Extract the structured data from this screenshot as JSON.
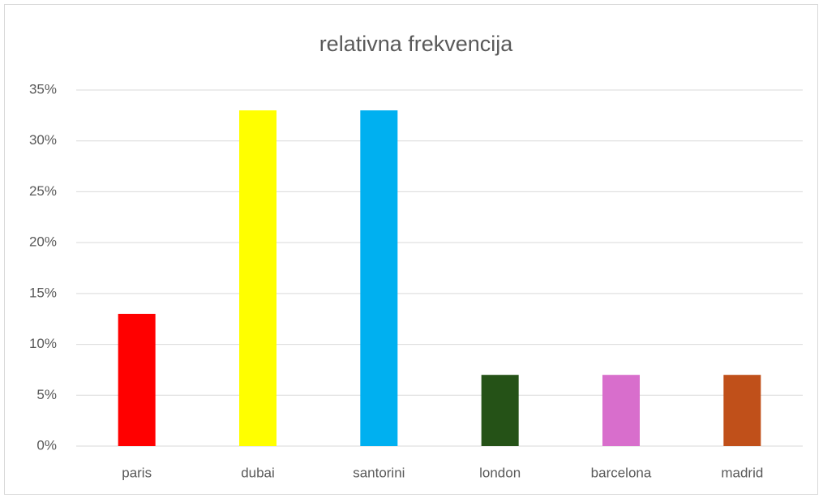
{
  "chart_data": {
    "type": "bar",
    "title": "relativna frekvencija",
    "categories": [
      "paris",
      "dubai",
      "santorini",
      "london",
      "barcelona",
      "madrid"
    ],
    "values": [
      13,
      33,
      33,
      7,
      7,
      7
    ],
    "colors": [
      "#ff0000",
      "#ffff00",
      "#00b0f0",
      "#255217",
      "#d86ecc",
      "#c0501a"
    ],
    "ylim": [
      0,
      35
    ],
    "yticks": [
      {
        "value": 0,
        "label": "0%"
      },
      {
        "value": 5,
        "label": "5%"
      },
      {
        "value": 10,
        "label": "10%"
      },
      {
        "value": 15,
        "label": "15%"
      },
      {
        "value": 20,
        "label": "20%"
      },
      {
        "value": 25,
        "label": "25%"
      },
      {
        "value": 30,
        "label": "30%"
      },
      {
        "value": 35,
        "label": "35%"
      }
    ],
    "grid": true
  }
}
